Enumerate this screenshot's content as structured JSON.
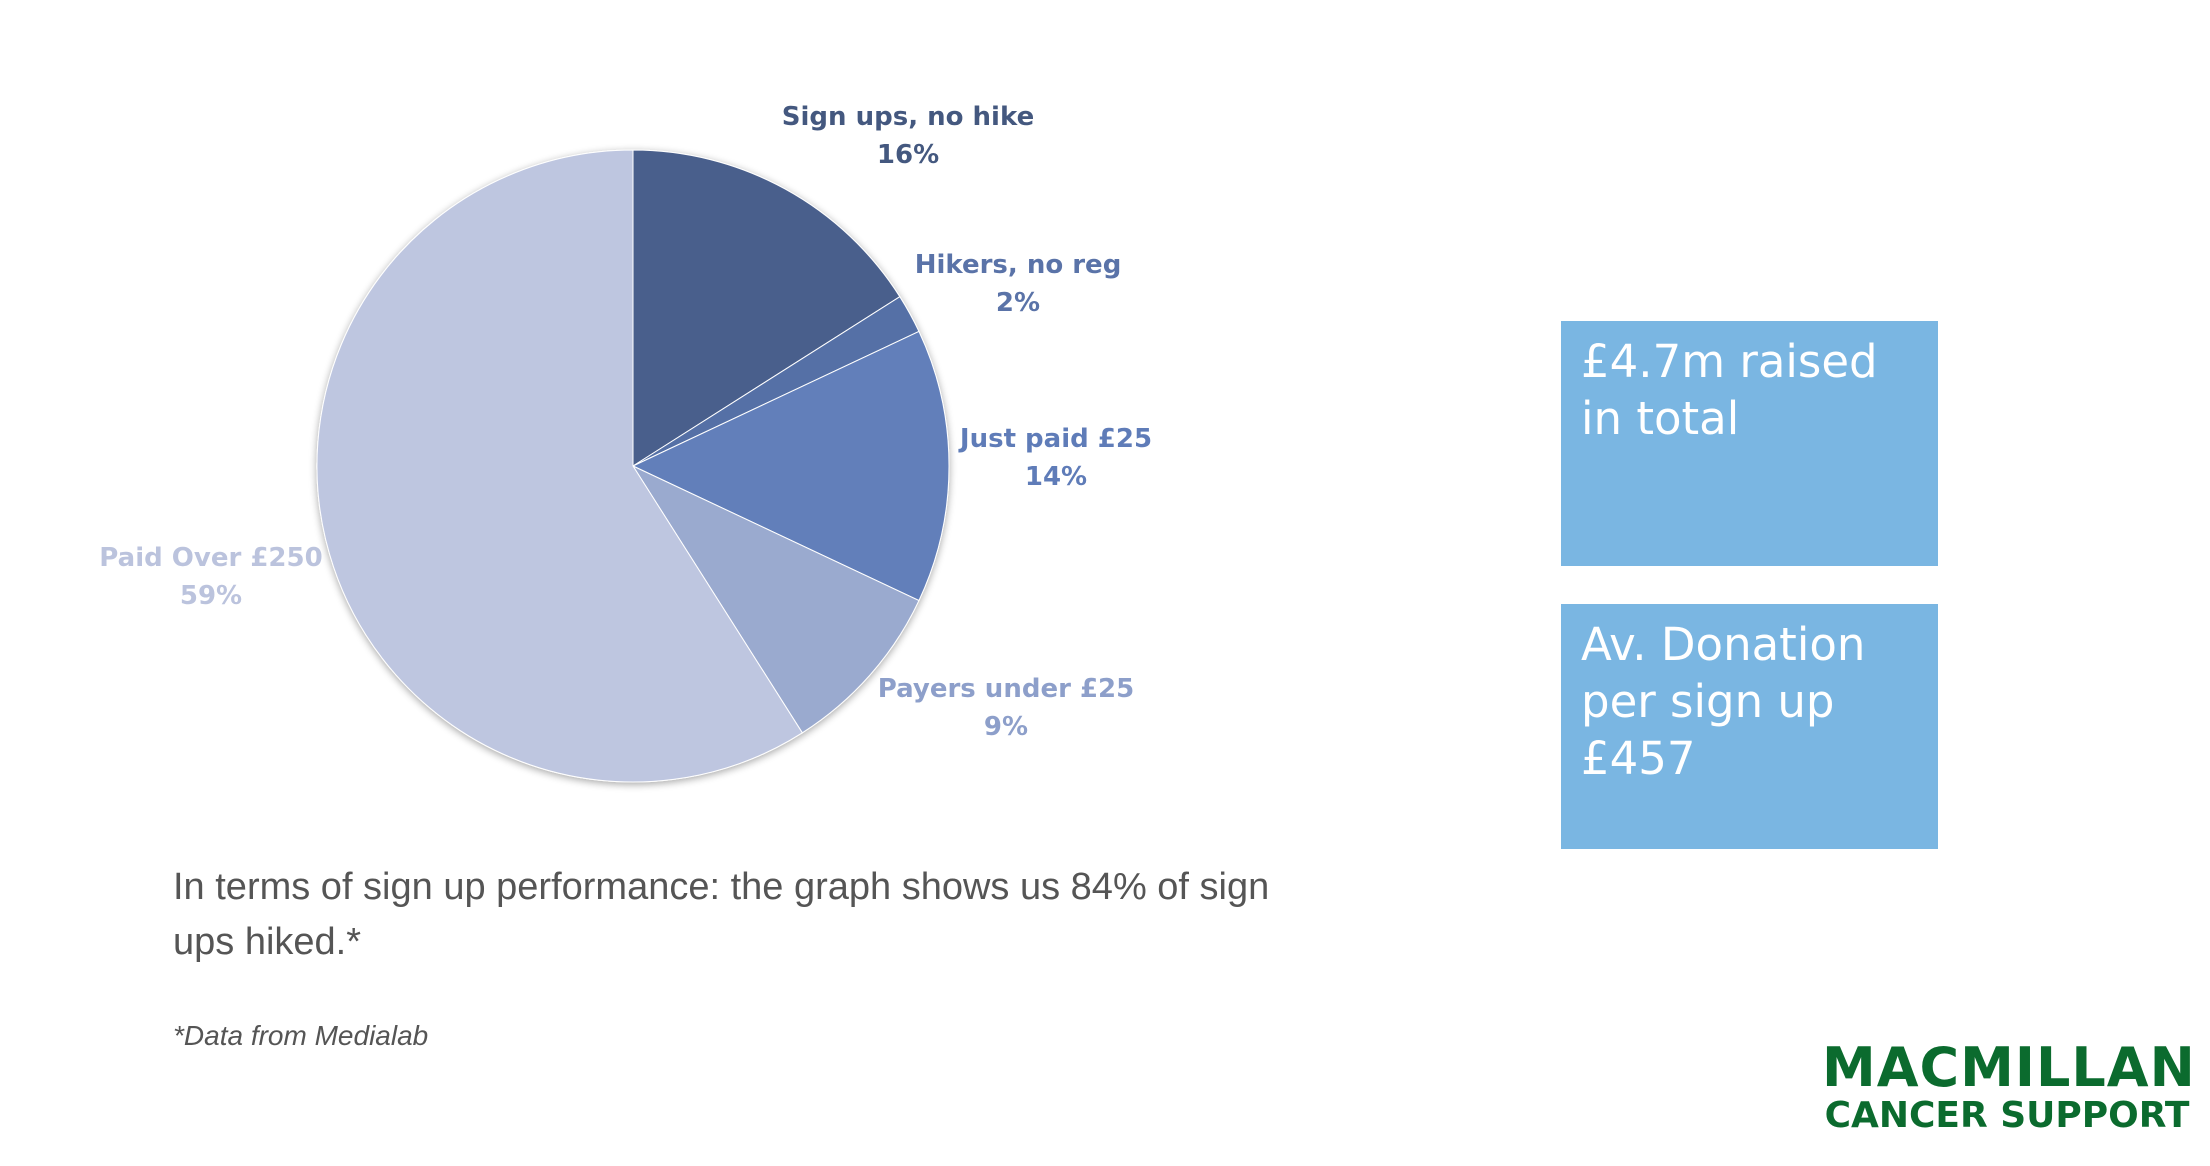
{
  "chart_data": {
    "type": "pie",
    "slices": [
      {
        "label": "Sign ups, no hike",
        "pct_label": "16%",
        "value": 16,
        "color": "#4a5f8c",
        "text_color": "#44587f"
      },
      {
        "label": "Hikers, no reg",
        "pct_label": "2%",
        "value": 2,
        "color": "#5470a6",
        "text_color": "#5a73a8"
      },
      {
        "label": "Just paid £25",
        "pct_label": "14%",
        "value": 14,
        "color": "#627fba",
        "text_color": "#5f7cb8"
      },
      {
        "label": "Payers under £25",
        "pct_label": "9%",
        "value": 9,
        "color": "#9aaacf",
        "text_color": "#8d9fca"
      },
      {
        "label": "Paid Over £250",
        "pct_label": "59%",
        "value": 59,
        "color": "#bec6e0",
        "text_color": "#bbc3dd"
      }
    ],
    "start_angle": "top",
    "direction": "clockwise"
  },
  "stats": {
    "total": "£4.7m raised in total",
    "avg": "Av. Donation per sign up £457"
  },
  "caption": "In terms of sign up performance: the graph shows us 84% of sign ups hiked.*",
  "footnote": "*Data from Medialab",
  "logo": {
    "line1": "MACMILLAN",
    "line2": "CANCER SUPPORT",
    "color": "#0b6b2e"
  },
  "colors": {
    "stat_box": "#7ab6e2",
    "body_text": "#555555"
  }
}
